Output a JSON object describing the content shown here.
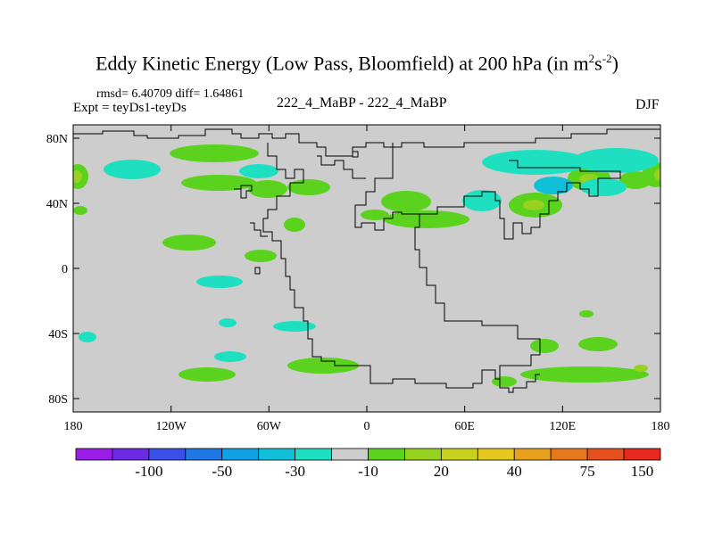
{
  "title": {
    "main": "Eddy Kinetic Energy (Low Pass, Bloomfield) at 200 hPa (in m",
    "sup1": "2",
    "mid": "s",
    "sup2": "-2",
    "end": ")"
  },
  "stats": "rmsd= 6.40709 diff= 1.64861",
  "experiment": "Expt = teyDs1-teyDs",
  "center_label": "222_4_MaBP - 222_4_MaBP",
  "season": "DJF",
  "lat_ticks": [
    {
      "label": "80N",
      "lat": 80
    },
    {
      "label": "40N",
      "lat": 40
    },
    {
      "label": "0",
      "lat": 0
    },
    {
      "label": "40S",
      "lat": -40
    },
    {
      "label": "80S",
      "lat": -80
    }
  ],
  "lon_ticks": [
    {
      "label": "180",
      "lon": -180
    },
    {
      "label": "120W",
      "lon": -120
    },
    {
      "label": "60W",
      "lon": -60
    },
    {
      "label": "0",
      "lon": 0
    },
    {
      "label": "60E",
      "lon": 60
    },
    {
      "label": "120E",
      "lon": 120
    },
    {
      "label": "180",
      "lon": 180
    }
  ],
  "colorbar": {
    "colors": [
      "#9a1ee6",
      "#6a2ae6",
      "#3a50e6",
      "#1e78e6",
      "#10a0e6",
      "#10c0d8",
      "#1ee0c0",
      "#cdcdcd",
      "#5ad21e",
      "#96d21e",
      "#c8d21e",
      "#e6c81e",
      "#e6a01e",
      "#e6781e",
      "#e6501e",
      "#e6281e"
    ],
    "labels": [
      {
        "text": "-100",
        "boundary": 2
      },
      {
        "text": "-50",
        "boundary": 4
      },
      {
        "text": "-30",
        "boundary": 6
      },
      {
        "text": "-10",
        "boundary": 8
      },
      {
        "text": "20",
        "boundary": 10
      },
      {
        "text": "40",
        "boundary": 12
      },
      {
        "text": "75",
        "boundary": 14
      },
      {
        "text": "150",
        "boundary": 16
      }
    ]
  },
  "colors": {
    "background_field": "#cdcdcd",
    "green": "#5ad21e",
    "yellow_green": "#96d21e",
    "cyan": "#1ee0c0",
    "cyan_dark": "#10c0d8",
    "coast": "#000000"
  }
}
